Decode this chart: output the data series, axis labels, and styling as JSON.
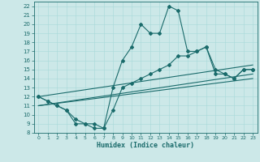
{
  "xlabel": "Humidex (Indice chaleur)",
  "xlim": [
    -0.5,
    23.5
  ],
  "ylim": [
    8,
    22.5
  ],
  "xticks": [
    0,
    1,
    2,
    3,
    4,
    5,
    6,
    7,
    8,
    9,
    10,
    11,
    12,
    13,
    14,
    15,
    16,
    17,
    18,
    19,
    20,
    21,
    22,
    23
  ],
  "yticks": [
    8,
    9,
    10,
    11,
    12,
    13,
    14,
    15,
    16,
    17,
    18,
    19,
    20,
    21,
    22
  ],
  "bg_color": "#cce8e8",
  "line_color": "#1a6b6b",
  "line1_x": [
    0,
    1,
    2,
    3,
    4,
    5,
    6,
    7,
    8,
    9,
    10,
    11,
    12,
    13,
    14,
    15,
    16,
    17,
    18,
    19,
    20,
    21,
    22,
    23
  ],
  "line1_y": [
    12,
    11.5,
    11,
    10.5,
    9,
    9,
    8.5,
    8.5,
    13,
    16,
    17.5,
    20,
    19,
    19,
    22,
    21.5,
    17,
    17,
    17.5,
    15,
    14.5,
    14,
    15,
    15
  ],
  "line2_x": [
    0,
    1,
    2,
    3,
    4,
    5,
    6,
    7,
    8,
    9,
    10,
    11,
    12,
    13,
    14,
    15,
    16,
    17,
    18,
    19,
    20,
    21,
    22,
    23
  ],
  "line2_y": [
    12,
    11.5,
    11,
    10.5,
    9.5,
    9,
    9,
    8.5,
    10.5,
    13,
    13.5,
    14,
    14.5,
    15,
    15.5,
    16.5,
    16.5,
    17,
    17.5,
    14.5,
    14.5,
    14,
    15,
    15
  ],
  "line3_x": [
    0,
    23
  ],
  "line3_y": [
    12,
    15.5
  ],
  "line4_x": [
    0,
    23
  ],
  "line4_y": [
    11,
    14.5
  ],
  "line5_x": [
    0,
    23
  ],
  "line5_y": [
    11,
    14
  ]
}
